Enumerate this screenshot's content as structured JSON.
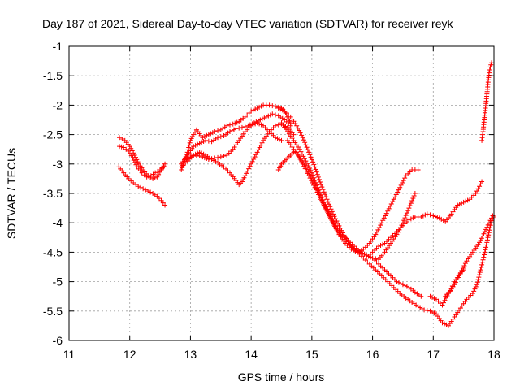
{
  "chart_data": {
    "type": "scatter",
    "title": "Day 187 of 2021, Sidereal Day-to-day VTEC variation (SDTVAR) for receiver reyk",
    "xlabel": "GPS time / hours",
    "ylabel": "SDTVAR / TECUs",
    "xlim": [
      11,
      18
    ],
    "ylim": [
      -6,
      -1
    ],
    "x_ticks": [
      11,
      12,
      13,
      14,
      15,
      16,
      17,
      18
    ],
    "y_ticks": [
      -6,
      -5.5,
      -5,
      -4.5,
      -4,
      -3.5,
      -3,
      -2.5,
      -2,
      -1.5,
      -1
    ],
    "x_tick_labels": [
      "11",
      "12",
      "13",
      "14",
      "15",
      "16",
      "17",
      "18"
    ],
    "y_tick_labels": [
      "-6",
      "-5.5",
      "-5",
      "-4.5",
      "-4",
      "-3.5",
      "-3",
      "-2.5",
      "-2",
      "-1.5",
      "-1"
    ],
    "grid": true,
    "marker": "+",
    "marker_color": "#ff0000",
    "series": [
      {
        "name": "s1",
        "x": [
          11.83,
          11.92,
          12.0,
          12.08,
          12.15,
          12.22,
          12.3,
          12.38,
          12.45,
          12.52,
          12.58
        ],
        "y": [
          -2.55,
          -2.6,
          -2.7,
          -2.85,
          -3.0,
          -3.1,
          -3.2,
          -3.25,
          -3.22,
          -3.1,
          -3.0
        ]
      },
      {
        "name": "s2",
        "x": [
          11.83,
          11.9,
          11.98,
          12.05,
          12.12,
          12.2,
          12.28,
          12.35,
          12.42,
          12.5,
          12.56
        ],
        "y": [
          -2.7,
          -2.72,
          -2.78,
          -2.9,
          -3.05,
          -3.15,
          -3.22,
          -3.2,
          -3.15,
          -3.1,
          -3.05
        ]
      },
      {
        "name": "s3",
        "x": [
          11.82,
          11.9,
          11.98,
          12.06,
          12.14,
          12.22,
          12.3,
          12.38,
          12.45,
          12.52,
          12.58
        ],
        "y": [
          -3.05,
          -3.15,
          -3.25,
          -3.32,
          -3.38,
          -3.42,
          -3.46,
          -3.5,
          -3.55,
          -3.62,
          -3.7
        ]
      },
      {
        "name": "s4",
        "x": [
          12.85,
          12.9,
          12.95,
          13.0,
          13.05,
          13.1,
          13.2,
          13.3,
          13.4,
          13.5,
          13.6,
          13.7,
          13.8,
          13.9,
          14.0,
          14.1,
          14.2,
          14.3,
          14.4,
          14.5,
          14.55,
          14.6,
          14.65
        ],
        "y": [
          -3.1,
          -2.95,
          -2.8,
          -2.6,
          -2.5,
          -2.42,
          -2.55,
          -2.5,
          -2.45,
          -2.42,
          -2.35,
          -2.32,
          -2.28,
          -2.2,
          -2.1,
          -2.05,
          -2.0,
          -2.0,
          -2.02,
          -2.05,
          -2.1,
          -2.2,
          -2.3
        ]
      },
      {
        "name": "s5",
        "x": [
          12.85,
          12.95,
          13.05,
          13.15,
          13.25,
          13.35,
          13.45,
          13.55,
          13.65,
          13.75,
          13.85,
          13.95,
          14.05,
          14.15,
          14.25,
          14.35,
          14.45,
          14.55,
          14.65
        ],
        "y": [
          -3.0,
          -2.85,
          -2.7,
          -2.65,
          -2.6,
          -2.62,
          -2.55,
          -2.52,
          -2.45,
          -2.4,
          -2.38,
          -2.35,
          -2.3,
          -2.25,
          -2.2,
          -2.15,
          -2.18,
          -2.25,
          -2.35
        ]
      },
      {
        "name": "s6",
        "x": [
          12.85,
          12.95,
          13.05,
          13.15,
          13.25,
          13.35,
          13.45,
          13.55,
          13.65,
          13.75,
          13.8,
          13.85,
          13.9,
          14.0,
          14.1,
          14.2,
          14.3,
          14.4,
          14.5,
          14.6,
          14.7
        ],
        "y": [
          -3.05,
          -2.95,
          -2.85,
          -2.8,
          -2.85,
          -2.92,
          -2.98,
          -3.05,
          -3.15,
          -3.28,
          -3.35,
          -3.3,
          -3.2,
          -3.0,
          -2.8,
          -2.6,
          -2.45,
          -2.35,
          -2.32,
          -2.38,
          -2.5
        ]
      },
      {
        "name": "s7",
        "x": [
          12.9,
          13.0,
          13.1,
          13.2,
          13.3,
          13.4,
          13.5,
          13.6,
          13.7,
          13.8,
          13.9,
          14.0,
          14.1,
          14.2,
          14.3,
          14.4,
          14.5
        ],
        "y": [
          -2.95,
          -2.88,
          -2.85,
          -2.88,
          -2.92,
          -2.9,
          -2.88,
          -2.85,
          -2.75,
          -2.6,
          -2.45,
          -2.35,
          -2.3,
          -2.35,
          -2.45,
          -2.55,
          -2.6
        ]
      },
      {
        "name": "s8",
        "x": [
          14.45,
          14.55,
          14.65,
          14.75,
          14.85,
          14.95,
          15.05,
          15.15,
          15.25,
          15.35,
          15.45,
          15.55,
          15.65,
          15.75,
          15.85,
          15.95,
          16.05,
          16.15,
          16.25,
          16.35,
          16.45,
          16.55,
          16.65,
          16.75,
          16.85,
          16.95,
          17.05
        ],
        "y": [
          -2.05,
          -2.1,
          -2.2,
          -2.35,
          -2.55,
          -2.8,
          -3.05,
          -3.35,
          -3.6,
          -3.85,
          -4.05,
          -4.25,
          -4.4,
          -4.5,
          -4.6,
          -4.7,
          -4.8,
          -4.9,
          -5.0,
          -5.1,
          -5.2,
          -5.28,
          -5.35,
          -5.42,
          -5.48,
          -5.5,
          -5.55
        ]
      },
      {
        "name": "s9",
        "x": [
          14.5,
          14.6,
          14.7,
          14.8,
          14.9,
          15.0,
          15.1,
          15.2,
          15.3,
          15.4,
          15.5,
          15.6,
          15.7,
          15.8,
          15.9,
          16.0,
          16.1,
          16.2,
          16.3,
          16.4,
          16.5,
          16.6,
          16.7,
          16.8
        ],
        "y": [
          -2.3,
          -2.45,
          -2.6,
          -2.75,
          -2.95,
          -3.15,
          -3.4,
          -3.65,
          -3.85,
          -4.05,
          -4.2,
          -4.3,
          -4.4,
          -4.5,
          -4.55,
          -4.6,
          -4.7,
          -4.8,
          -4.9,
          -5.0,
          -5.05,
          -5.1,
          -5.18,
          -5.25
        ]
      },
      {
        "name": "s10",
        "x": [
          14.6,
          14.7,
          14.8,
          14.9,
          15.0,
          15.1,
          15.2,
          15.3,
          15.4,
          15.5,
          15.6,
          15.7,
          15.8,
          15.9,
          16.0,
          16.1,
          16.2,
          16.3,
          16.4,
          16.5,
          16.6,
          16.7
        ],
        "y": [
          -2.6,
          -2.75,
          -2.9,
          -3.05,
          -3.25,
          -3.45,
          -3.7,
          -3.9,
          -4.1,
          -4.25,
          -4.35,
          -4.45,
          -4.5,
          -4.55,
          -4.6,
          -4.62,
          -4.5,
          -4.35,
          -4.2,
          -4.0,
          -3.75,
          -3.5
        ]
      },
      {
        "name": "s11",
        "x": [
          14.75,
          14.85,
          14.95,
          15.05,
          15.15,
          15.25,
          15.35,
          15.45,
          15.55,
          15.65,
          15.75,
          15.85,
          15.95,
          16.05,
          16.15,
          16.25,
          16.35,
          16.45,
          16.55,
          16.65,
          16.75
        ],
        "y": [
          -2.8,
          -3.0,
          -3.2,
          -3.4,
          -3.6,
          -3.8,
          -4.0,
          -4.2,
          -4.35,
          -4.45,
          -4.5,
          -4.45,
          -4.35,
          -4.2,
          -4.0,
          -3.8,
          -3.6,
          -3.4,
          -3.2,
          -3.1,
          -3.1
        ]
      },
      {
        "name": "s12",
        "x": [
          14.45,
          14.5,
          14.55,
          14.6,
          14.65,
          14.7
        ],
        "y": [
          -3.1,
          -3.0,
          -2.95,
          -2.9,
          -2.85,
          -2.8
        ]
      },
      {
        "name": "s13",
        "x": [
          15.9,
          16.0,
          16.1,
          16.2,
          16.3,
          16.4,
          16.5,
          16.6,
          16.7,
          16.8,
          16.9,
          17.0,
          17.1,
          17.2,
          17.3,
          17.4,
          17.5,
          17.6,
          17.7,
          17.8
        ],
        "y": [
          -4.6,
          -4.5,
          -4.4,
          -4.35,
          -4.25,
          -4.15,
          -4.05,
          -3.95,
          -3.9,
          -3.9,
          -3.85,
          -3.88,
          -3.92,
          -3.98,
          -3.85,
          -3.7,
          -3.65,
          -3.6,
          -3.5,
          -3.3
        ]
      },
      {
        "name": "s14",
        "x": [
          17.05,
          17.15,
          17.25,
          17.35,
          17.45,
          17.55,
          17.65,
          17.72,
          17.78,
          17.85,
          17.9,
          17.95,
          18.0
        ],
        "y": [
          -5.55,
          -5.7,
          -5.75,
          -5.6,
          -5.45,
          -5.3,
          -5.2,
          -5.05,
          -4.8,
          -4.5,
          -4.25,
          -4.0,
          -3.9
        ]
      },
      {
        "name": "s15",
        "x": [
          16.95,
          17.05,
          17.15,
          17.25,
          17.35,
          17.45,
          17.55,
          17.65,
          17.72,
          17.78,
          17.85,
          17.92,
          17.98
        ],
        "y": [
          -5.25,
          -5.3,
          -5.4,
          -5.2,
          -5.05,
          -4.85,
          -4.65,
          -4.5,
          -4.4,
          -4.3,
          -4.15,
          -4.0,
          -3.88
        ]
      },
      {
        "name": "s16",
        "x": [
          17.2,
          17.28,
          17.35,
          17.42,
          17.5
        ],
        "y": [
          -5.25,
          -5.15,
          -5.0,
          -4.9,
          -4.8
        ]
      },
      {
        "name": "s17",
        "x": [
          17.8,
          17.82,
          17.84,
          17.86,
          17.88,
          17.9,
          17.92,
          17.94,
          17.96
        ],
        "y": [
          -2.6,
          -2.45,
          -2.25,
          -2.05,
          -1.85,
          -1.65,
          -1.45,
          -1.35,
          -1.28
        ]
      }
    ]
  }
}
